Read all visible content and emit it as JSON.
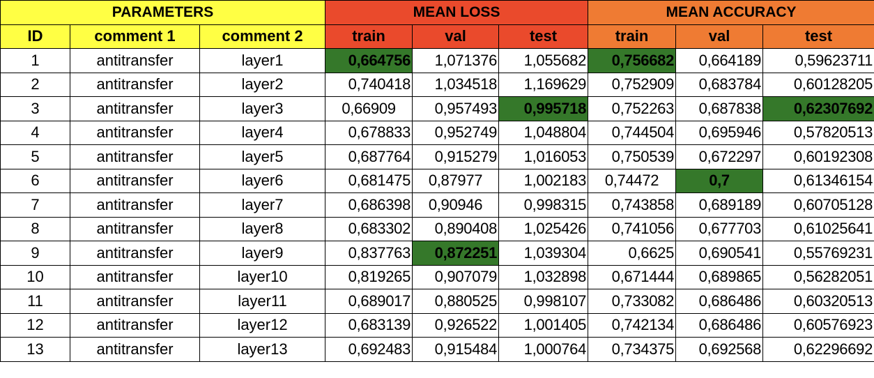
{
  "header": {
    "group_parameters": "PARAMETERS",
    "group_mean_loss": "MEAN LOSS",
    "group_mean_accuracy": "MEAN ACCURACY",
    "col_id": "ID",
    "col_comment1": "comment 1",
    "col_comment2": "comment 2",
    "loss_train": "train",
    "loss_val": "val",
    "loss_test": "test",
    "acc_train": "train",
    "acc_val": "val",
    "acc_test": "test"
  },
  "colors": {
    "parameters_header": "#ffff44",
    "mean_loss_header": "#ea4a2c",
    "mean_accuracy_header": "#ef7b33",
    "best_value_highlight": "#35782a"
  },
  "rows": [
    {
      "id": "1",
      "comment1": "antitransfer",
      "comment2": "layer1",
      "loss_train": "0,664756",
      "loss_val": "1,071376",
      "loss_test": "1,055682",
      "acc_train": "0,756682",
      "acc_val": "0,664189",
      "acc_test": "0,59623711"
    },
    {
      "id": "2",
      "comment1": "antitransfer",
      "comment2": "layer2",
      "loss_train": "0,740418",
      "loss_val": "1,034518",
      "loss_test": "1,169629",
      "acc_train": "0,752909",
      "acc_val": "0,683784",
      "acc_test": "0,60128205"
    },
    {
      "id": "3",
      "comment1": "antitransfer",
      "comment2": "layer3",
      "loss_train": "0,66909",
      "loss_val": "0,957493",
      "loss_test": "0,995718",
      "acc_train": "0,752263",
      "acc_val": "0,687838",
      "acc_test": "0,62307692"
    },
    {
      "id": "4",
      "comment1": "antitransfer",
      "comment2": "layer4",
      "loss_train": "0,678833",
      "loss_val": "0,952749",
      "loss_test": "1,048804",
      "acc_train": "0,744504",
      "acc_val": "0,695946",
      "acc_test": "0,57820513"
    },
    {
      "id": "5",
      "comment1": "antitransfer",
      "comment2": "layer5",
      "loss_train": "0,687764",
      "loss_val": "0,915279",
      "loss_test": "1,016053",
      "acc_train": "0,750539",
      "acc_val": "0,672297",
      "acc_test": "0,60192308"
    },
    {
      "id": "6",
      "comment1": "antitransfer",
      "comment2": "layer6",
      "loss_train": "0,681475",
      "loss_val": "0,87977",
      "loss_test": "1,002183",
      "acc_train": "0,74472",
      "acc_val": "0,7",
      "acc_test": "0,61346154"
    },
    {
      "id": "7",
      "comment1": "antitransfer",
      "comment2": "layer7",
      "loss_train": "0,686398",
      "loss_val": "0,90946",
      "loss_test": "0,998315",
      "acc_train": "0,743858",
      "acc_val": "0,689189",
      "acc_test": "0,60705128"
    },
    {
      "id": "8",
      "comment1": "antitransfer",
      "comment2": "layer8",
      "loss_train": "0,683302",
      "loss_val": "0,890408",
      "loss_test": "1,025426",
      "acc_train": "0,741056",
      "acc_val": "0,677703",
      "acc_test": "0,61025641"
    },
    {
      "id": "9",
      "comment1": "antitransfer",
      "comment2": "layer9",
      "loss_train": "0,837763",
      "loss_val": "0,872251",
      "loss_test": "1,039304",
      "acc_train": "0,6625",
      "acc_val": "0,690541",
      "acc_test": "0,55769231"
    },
    {
      "id": "10",
      "comment1": "antitransfer",
      "comment2": "layer10",
      "loss_train": "0,819265",
      "loss_val": "0,907079",
      "loss_test": "1,032898",
      "acc_train": "0,671444",
      "acc_val": "0,689865",
      "acc_test": "0,56282051"
    },
    {
      "id": "11",
      "comment1": "antitransfer",
      "comment2": "layer11",
      "loss_train": "0,689017",
      "loss_val": "0,880525",
      "loss_test": "0,998107",
      "acc_train": "0,733082",
      "acc_val": "0,686486",
      "acc_test": "0,60320513"
    },
    {
      "id": "12",
      "comment1": "antitransfer",
      "comment2": "layer12",
      "loss_train": "0,683139",
      "loss_val": "0,926522",
      "loss_test": "1,001405",
      "acc_train": "0,742134",
      "acc_val": "0,686486",
      "acc_test": "0,60576923"
    },
    {
      "id": "13",
      "comment1": "antitransfer",
      "comment2": "layer13",
      "loss_train": "0,692483",
      "loss_val": "0,915484",
      "loss_test": "1,000764",
      "acc_train": "0,734375",
      "acc_val": "0,692568",
      "acc_test": "0,62296692"
    }
  ]
}
